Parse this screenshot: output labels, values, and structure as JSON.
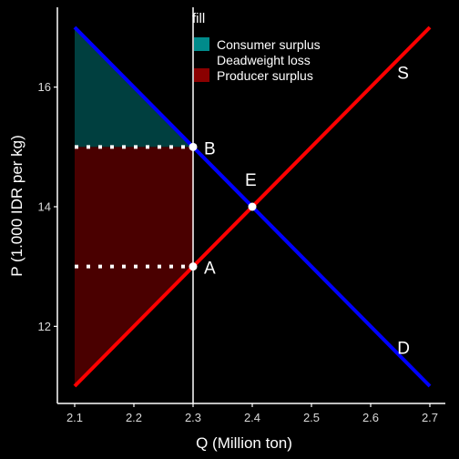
{
  "chart_data": {
    "type": "line",
    "xlabel": "Q (Million ton)",
    "ylabel": "P (1.000 IDR per kg)",
    "xlim": [
      2.1,
      2.7
    ],
    "ylim": [
      11,
      17
    ],
    "xticks": [
      "2.1",
      "2.2",
      "2.3",
      "2.4",
      "2.5",
      "2.6",
      "2.7"
    ],
    "yticks": [
      "12",
      "14",
      "16"
    ],
    "series": [
      {
        "name": "D",
        "color": "#0000ff",
        "x": [
          2.1,
          2.7
        ],
        "y": [
          17,
          11
        ]
      },
      {
        "name": "S",
        "color": "#ff0000",
        "x": [
          2.1,
          2.7
        ],
        "y": [
          11,
          17
        ]
      }
    ],
    "points": [
      {
        "label": "B",
        "x": 2.3,
        "y": 15
      },
      {
        "label": "E",
        "x": 2.4,
        "y": 14
      },
      {
        "label": "A",
        "x": 2.3,
        "y": 13
      }
    ],
    "vline": {
      "x": 2.3,
      "color": "#ffffff"
    },
    "dotted_hlines": [
      {
        "y": 15,
        "x": [
          2.1,
          2.3
        ]
      },
      {
        "y": 13,
        "x": [
          2.1,
          2.3
        ]
      }
    ],
    "areas": [
      {
        "name": "Consumer surplus",
        "color": "#003f3f",
        "polygon": [
          [
            2.1,
            17
          ],
          [
            2.3,
            15
          ],
          [
            2.1,
            15
          ]
        ]
      },
      {
        "name": "Producer surplus",
        "color": "#4a0000",
        "polygon": [
          [
            2.1,
            15
          ],
          [
            2.3,
            15
          ],
          [
            2.3,
            13
          ],
          [
            2.1,
            11
          ]
        ]
      }
    ],
    "legend": {
      "title": "fill",
      "position": "top-center",
      "entries": [
        {
          "label": "Consumer surplus",
          "color": "#008b8b"
        },
        {
          "label": "Deadweight loss",
          "color": "none"
        },
        {
          "label": "Producer surplus",
          "color": "#8b0000"
        }
      ]
    },
    "curve_labels": [
      {
        "text": "S",
        "x": 2.645,
        "y": 16.25
      },
      {
        "text": "D",
        "x": 2.645,
        "y": 11.65
      }
    ],
    "grid": false,
    "background": "#000000"
  }
}
